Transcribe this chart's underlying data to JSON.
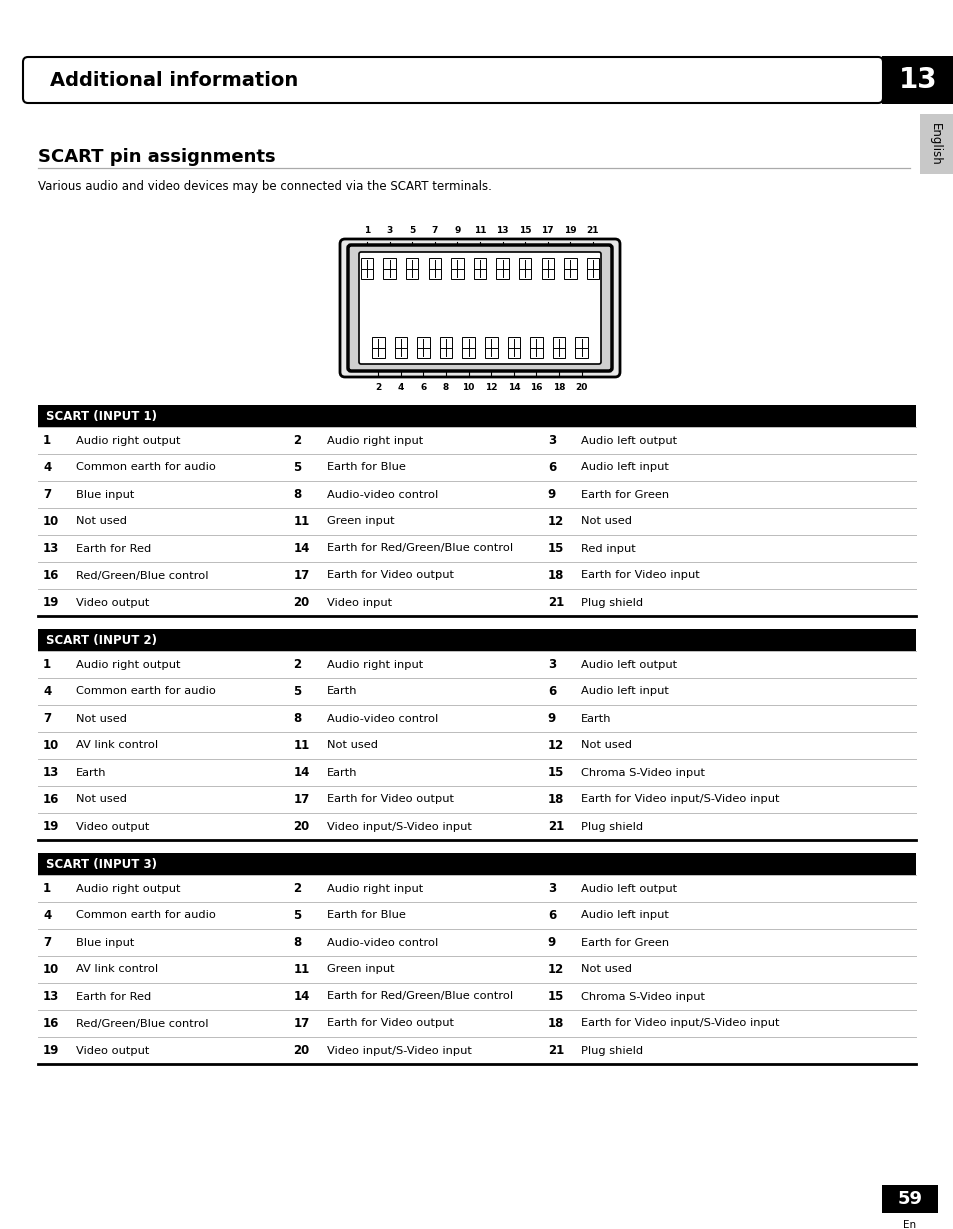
{
  "page_title": "Additional information",
  "chapter_num": "13",
  "section_title": "SCART pin assignments",
  "section_subtitle": "Various audio and video devices may be connected via the SCART terminals.",
  "side_label": "English",
  "page_num": "59",
  "page_sub": "En",
  "tables": [
    {
      "header": "SCART (INPUT 1)",
      "rows": [
        [
          "1",
          "Audio right output",
          "2",
          "Audio right input",
          "3",
          "Audio left output"
        ],
        [
          "4",
          "Common earth for audio",
          "5",
          "Earth for Blue",
          "6",
          "Audio left input"
        ],
        [
          "7",
          "Blue input",
          "8",
          "Audio-video control",
          "9",
          "Earth for Green"
        ],
        [
          "10",
          "Not used",
          "11",
          "Green input",
          "12",
          "Not used"
        ],
        [
          "13",
          "Earth for Red",
          "14",
          "Earth for Red/Green/Blue control",
          "15",
          "Red input"
        ],
        [
          "16",
          "Red/Green/Blue control",
          "17",
          "Earth for Video output",
          "18",
          "Earth for Video input"
        ],
        [
          "19",
          "Video output",
          "20",
          "Video input",
          "21",
          "Plug shield"
        ]
      ]
    },
    {
      "header": "SCART (INPUT 2)",
      "rows": [
        [
          "1",
          "Audio right output",
          "2",
          "Audio right input",
          "3",
          "Audio left output"
        ],
        [
          "4",
          "Common earth for audio",
          "5",
          "Earth",
          "6",
          "Audio left input"
        ],
        [
          "7",
          "Not used",
          "8",
          "Audio-video control",
          "9",
          "Earth"
        ],
        [
          "10",
          "AV link control",
          "11",
          "Not used",
          "12",
          "Not used"
        ],
        [
          "13",
          "Earth",
          "14",
          "Earth",
          "15",
          "Chroma S-Video input"
        ],
        [
          "16",
          "Not used",
          "17",
          "Earth for Video output",
          "18",
          "Earth for Video input/S-Video input"
        ],
        [
          "19",
          "Video output",
          "20",
          "Video input/S-Video input",
          "21",
          "Plug shield"
        ]
      ]
    },
    {
      "header": "SCART (INPUT 3)",
      "rows": [
        [
          "1",
          "Audio right output",
          "2",
          "Audio right input",
          "3",
          "Audio left output"
        ],
        [
          "4",
          "Common earth for audio",
          "5",
          "Earth for Blue",
          "6",
          "Audio left input"
        ],
        [
          "7",
          "Blue input",
          "8",
          "Audio-video control",
          "9",
          "Earth for Green"
        ],
        [
          "10",
          "AV link control",
          "11",
          "Green input",
          "12",
          "Not used"
        ],
        [
          "13",
          "Earth for Red",
          "14",
          "Earth for Red/Green/Blue control",
          "15",
          "Chroma S-Video input"
        ],
        [
          "16",
          "Red/Green/Blue control",
          "17",
          "Earth for Video output",
          "18",
          "Earth for Video input/S-Video input"
        ],
        [
          "19",
          "Video output",
          "20",
          "Video input/S-Video input",
          "21",
          "Plug shield"
        ]
      ]
    }
  ],
  "background_color": "#ffffff",
  "header_bg": "#000000",
  "header_fg": "#ffffff",
  "row_line_color": "#bbbbbb",
  "table_border_color": "#000000",
  "text_color": "#000000"
}
